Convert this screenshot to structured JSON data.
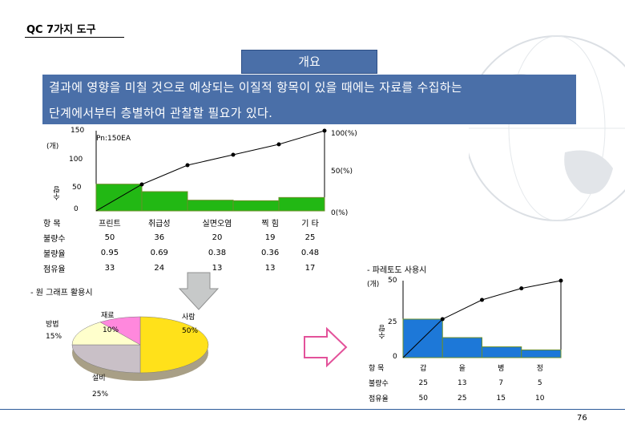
{
  "header": {
    "title": "QC 7가지 도구"
  },
  "section": {
    "overview_label": "개요"
  },
  "description": {
    "line1": "결과에 영향을 미칠 것으로 예상되는 이질적 항목이 있을 때에는 자료를 수집하는",
    "line2": "단계에서부터 층별하여 관찰할 필요가 있다."
  },
  "main_chart": {
    "unit_label": "(개)",
    "n_label": "Pn:150EA",
    "y_ticks": [
      "150",
      "100",
      "50",
      "0"
    ],
    "pct_ticks": [
      "100(%)",
      "50(%)",
      "0(%)"
    ],
    "y_axis_label": "수량",
    "table": {
      "row_labels": [
        "항 목",
        "불량수",
        "불량율",
        "점유율"
      ],
      "columns": [
        {
          "name": "프린트",
          "count": "50",
          "rate": "0.95",
          "share": "33"
        },
        {
          "name": "취급성",
          "count": "36",
          "rate": "0.69",
          "share": "24"
        },
        {
          "name": "실면오염",
          "count": "20",
          "rate": "0.38",
          "share": "13"
        },
        {
          "name": "찍 힘",
          "count": "19",
          "rate": "0.36",
          "share": "13"
        },
        {
          "name": "기 타",
          "count": "25",
          "rate": "0.48",
          "share": "17"
        }
      ]
    }
  },
  "pie_section": {
    "caption": "- 원 그래프 활용시",
    "labels": [
      {
        "name": "재료",
        "pct": "10%"
      },
      {
        "name": "사람",
        "pct": "50%"
      },
      {
        "name": "설비",
        "pct": "25%"
      },
      {
        "name": "방법",
        "pct": "15%"
      }
    ]
  },
  "pareto_section": {
    "caption": "- 파레토도 사용시",
    "unit_label": "(개)",
    "y_ticks": [
      "50",
      "25",
      "0"
    ],
    "y_axis_label": "수량",
    "table": {
      "row_labels": [
        "항 목",
        "불량수",
        "점유율"
      ],
      "columns": [
        {
          "name": "갑",
          "count": "25",
          "share": "50"
        },
        {
          "name": "을",
          "count": "13",
          "share": "25"
        },
        {
          "name": "병",
          "count": "7",
          "share": "15"
        },
        {
          "name": "정",
          "count": "5",
          "share": "10"
        }
      ]
    }
  },
  "footer": {
    "page_number": "76"
  },
  "chart_data": [
    {
      "type": "bar",
      "categories": [
        "프린트",
        "취급성",
        "실면오염",
        "찍 힘",
        "기 타"
      ],
      "values": [
        50,
        36,
        20,
        19,
        25
      ],
      "cumulative_pct": [
        33,
        57,
        70,
        83,
        100
      ],
      "ylim": [
        0,
        150
      ],
      "ylabel": "수량",
      "colors": {
        "bar": "#22b814",
        "line": "#000000"
      }
    },
    {
      "type": "pie",
      "categories": [
        "사람",
        "설비",
        "방법",
        "재료"
      ],
      "values": [
        50,
        25,
        15,
        10
      ],
      "colors": {
        "사람": "#ffe11a",
        "설비": "#c9c0c7",
        "방법": "#ffffcc",
        "재료": "#ff88dd"
      }
    },
    {
      "type": "bar",
      "categories": [
        "갑",
        "을",
        "병",
        "정"
      ],
      "values": [
        25,
        13,
        7,
        5
      ],
      "cumulative_pct": [
        50,
        75,
        90,
        100
      ],
      "ylim": [
        0,
        50
      ],
      "ylabel": "수량",
      "colors": {
        "bar": "#1d78d8",
        "line": "#000000"
      }
    }
  ]
}
